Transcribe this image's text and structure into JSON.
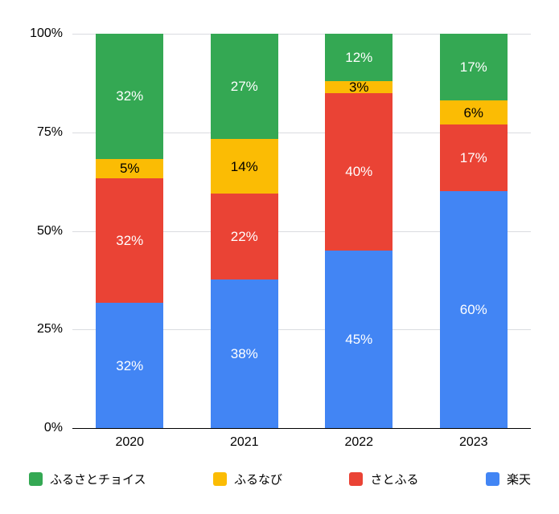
{
  "chart_data": {
    "type": "bar",
    "stacked": true,
    "percent_stacked": true,
    "title": "",
    "xlabel": "",
    "ylabel": "",
    "categories": [
      "2020",
      "2021",
      "2022",
      "2023"
    ],
    "series": [
      {
        "name": "ふるさとチョイス",
        "color": "#34a853",
        "label_color": "#ffffff",
        "values": [
          32,
          27,
          12,
          17
        ]
      },
      {
        "name": "ふるなび",
        "color": "#fbbc04",
        "label_color": "#000000",
        "values": [
          5,
          14,
          3,
          6
        ]
      },
      {
        "name": "さとふる",
        "color": "#ea4335",
        "label_color": "#ffffff",
        "values": [
          32,
          22,
          40,
          17
        ]
      },
      {
        "name": "楽天",
        "color": "#4285f4",
        "label_color": "#ffffff",
        "values": [
          32,
          38,
          45,
          60
        ]
      }
    ],
    "stack_order_bottom_to_top": [
      "楽天",
      "さとふる",
      "ふるなび",
      "ふるさとチョイス"
    ],
    "value_suffix": "%",
    "ylim": [
      0,
      100
    ],
    "y_ticks": [
      {
        "value": 0,
        "label": "0%"
      },
      {
        "value": 25,
        "label": "25%"
      },
      {
        "value": 50,
        "label": "50%"
      },
      {
        "value": 75,
        "label": "75%"
      },
      {
        "value": 100,
        "label": "100%"
      }
    ],
    "grid": true,
    "legend_position": "bottom"
  },
  "colors": {
    "background": "#ffffff",
    "gridline": "#dadce0",
    "axis": "#000000",
    "tick_text": "#000000"
  }
}
